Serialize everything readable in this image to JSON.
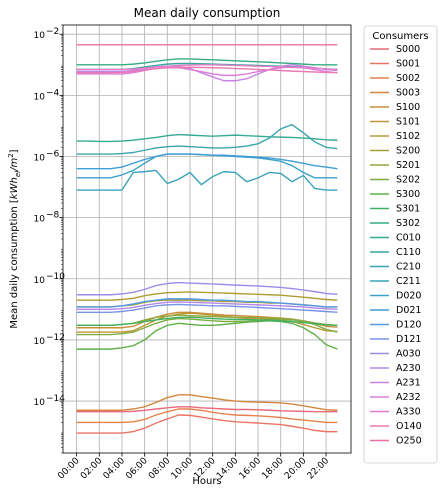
{
  "chart_data": {
    "type": "line",
    "title": "Mean daily consumption",
    "xlabel": "Hours",
    "ylabel": "Mean daily consumption [kWh_el/m^2]",
    "yscale": "log",
    "ylim": [
      2e-16,
      0.02
    ],
    "xlim": [
      -1.2,
      24.2
    ],
    "grid": true,
    "legend": {
      "title": "Consumers",
      "placement": "outside-right"
    },
    "x_ticks": [
      {
        "x": 0,
        "label": "00:00"
      },
      {
        "x": 2,
        "label": "02:00"
      },
      {
        "x": 4,
        "label": "04:00"
      },
      {
        "x": 6,
        "label": "06:00"
      },
      {
        "x": 8,
        "label": "08:00"
      },
      {
        "x": 10,
        "label": "10:00"
      },
      {
        "x": 12,
        "label": "12:00"
      },
      {
        "x": 14,
        "label": "14:00"
      },
      {
        "x": 16,
        "label": "16:00"
      },
      {
        "x": 18,
        "label": "18:00"
      },
      {
        "x": 20,
        "label": "20:00"
      },
      {
        "x": 22,
        "label": "22:00"
      }
    ],
    "y_ticks": [
      {
        "value": 1e-14,
        "base": "10",
        "exp": "−14"
      },
      {
        "value": 1e-12,
        "base": "10",
        "exp": "−12"
      },
      {
        "value": 1e-10,
        "base": "10",
        "exp": "−10"
      },
      {
        "value": 1e-08,
        "base": "10",
        "exp": "−8"
      },
      {
        "value": 1e-06,
        "base": "10",
        "exp": "−6"
      },
      {
        "value": 0.0001,
        "base": "10",
        "exp": "−4"
      },
      {
        "value": 0.01,
        "base": "10",
        "exp": "−2"
      }
    ],
    "x": [
      0,
      1,
      2,
      3,
      4,
      5,
      6,
      7,
      8,
      9,
      10,
      11,
      12,
      13,
      14,
      15,
      16,
      17,
      18,
      19,
      20,
      21,
      22,
      23
    ],
    "series": [
      {
        "name": "S000",
        "color": "#e8697a",
        "values": [
          4.5e-15,
          4.5e-15,
          4.5e-15,
          4.5e-15,
          4.5e-15,
          4.6e-15,
          5e-15,
          5.5e-15,
          6e-15,
          6.5e-15,
          6.5e-15,
          6e-15,
          5.8e-15,
          5.5e-15,
          5.3e-15,
          5.3e-15,
          5.2e-15,
          5e-15,
          4.8e-15,
          4.7e-15,
          4.6e-15,
          4.5e-15,
          4.5e-15,
          4.5e-15
        ]
      },
      {
        "name": "S001",
        "color": "#ea7565",
        "values": [
          9e-16,
          9e-16,
          9e-16,
          9e-16,
          9e-16,
          1e-15,
          1.3e-15,
          1.9e-15,
          2.6e-15,
          3.5e-15,
          3.4e-15,
          3e-15,
          2.6e-15,
          2.3e-15,
          2.1e-15,
          2e-15,
          1.9e-15,
          1.8e-15,
          1.7e-15,
          1.5e-15,
          1.3e-15,
          1.1e-15,
          1e-15,
          1e-15
        ]
      },
      {
        "name": "S002",
        "color": "#e6814e",
        "values": [
          2e-15,
          2e-15,
          2e-15,
          2e-15,
          2e-15,
          2.1e-15,
          2.5e-15,
          3.5e-15,
          4.5e-15,
          5.5e-15,
          5.5e-15,
          5e-15,
          4.3e-15,
          3.8e-15,
          3.5e-15,
          3.4e-15,
          3.3e-15,
          3.1e-15,
          2.9e-15,
          2.6e-15,
          2.4e-15,
          2.2e-15,
          2e-15,
          2e-15
        ]
      },
      {
        "name": "S003",
        "color": "#d4883f",
        "values": [
          5e-15,
          5e-15,
          5e-15,
          5e-15,
          5e-15,
          5.5e-15,
          6.5e-15,
          9e-15,
          1.3e-14,
          1.6e-14,
          1.6e-14,
          1.4e-14,
          1.25e-14,
          1.1e-14,
          1e-14,
          9.5e-15,
          9.2e-15,
          9e-15,
          8.7e-15,
          8e-15,
          7e-15,
          6e-15,
          5.2e-15,
          5e-15
        ]
      },
      {
        "name": "S100",
        "color": "#c88f3b",
        "values": [
          2.5e-12,
          2.5e-12,
          2.5e-12,
          2.5e-12,
          2.5e-12,
          2.8e-12,
          4e-12,
          5.5e-12,
          7e-12,
          8e-12,
          8e-12,
          7.5e-12,
          7e-12,
          6.5e-12,
          6.3e-12,
          6e-12,
          5.8e-12,
          5.5e-12,
          5.2e-12,
          4.8e-12,
          4.2e-12,
          3.5e-12,
          2.8e-12,
          2.6e-12
        ]
      },
      {
        "name": "S101",
        "color": "#bf9535",
        "values": [
          1.8e-12,
          1.8e-12,
          1.8e-12,
          1.8e-12,
          1.8e-12,
          2e-12,
          3e-12,
          4.5e-12,
          6e-12,
          7e-12,
          7.5e-12,
          7e-12,
          6.5e-12,
          6e-12,
          5.5e-12,
          5e-12,
          5e-12,
          4.8e-12,
          4.5e-12,
          4e-12,
          3.2e-12,
          2.5e-12,
          2e-12,
          1.9e-12
        ]
      },
      {
        "name": "S102",
        "color": "#b09d32",
        "values": [
          2e-11,
          2e-11,
          2e-11,
          2e-11,
          2.1e-11,
          2.3e-11,
          2.8e-11,
          3.2e-11,
          3.5e-11,
          3.6e-11,
          3.7e-11,
          3.6e-11,
          3.5e-11,
          3.4e-11,
          3.3e-11,
          3.2e-11,
          3.1e-11,
          3e-11,
          2.9e-11,
          2.7e-11,
          2.5e-11,
          2.3e-11,
          2.1e-11,
          2e-11
        ]
      },
      {
        "name": "S200",
        "color": "#a1a236",
        "values": [
          1.2e-11,
          1.2e-11,
          1.2e-11,
          1.2e-11,
          1.3e-11,
          1.4e-11,
          1.7e-11,
          1.9e-11,
          2e-11,
          2e-11,
          2e-11,
          1.9e-11,
          1.9e-11,
          1.8e-11,
          1.8e-11,
          1.7e-11,
          1.7e-11,
          1.6e-11,
          1.6e-11,
          1.5e-11,
          1.4e-11,
          1.3e-11,
          1.2e-11,
          1.2e-11
        ]
      },
      {
        "name": "S201",
        "color": "#92a83b",
        "values": [
          3e-12,
          3e-12,
          3e-12,
          3e-12,
          3.2e-12,
          3.5e-12,
          4.5e-12,
          5.5e-12,
          6e-12,
          6.5e-12,
          6.2e-12,
          6e-12,
          5.8e-12,
          5.6e-12,
          5.5e-12,
          5.4e-12,
          5.3e-12,
          5.2e-12,
          5e-12,
          4.6e-12,
          4.2e-12,
          3.6e-12,
          3.2e-12,
          3e-12
        ]
      },
      {
        "name": "S202",
        "color": "#7fad40",
        "values": [
          1.5e-12,
          1.5e-12,
          1.5e-12,
          1.5e-12,
          1.6e-12,
          1.8e-12,
          2.5e-12,
          3.5e-12,
          4.5e-12,
          5e-12,
          4.8e-12,
          4.5e-12,
          4.2e-12,
          4e-12,
          4e-12,
          4e-12,
          4.2e-12,
          4.5e-12,
          4.8e-12,
          4.6e-12,
          4e-12,
          3.2e-12,
          2.2e-12,
          1.8e-12
        ]
      },
      {
        "name": "S300",
        "color": "#5fb048",
        "values": [
          5e-13,
          5e-13,
          5e-13,
          5e-13,
          5.5e-13,
          6.5e-13,
          1e-12,
          2e-12,
          3e-12,
          3.5e-12,
          3.2e-12,
          3e-12,
          3e-12,
          3.2e-12,
          3.5e-12,
          3.8e-12,
          4e-12,
          4.2e-12,
          4e-12,
          3.5e-12,
          2.5e-12,
          1.5e-12,
          7e-13,
          5e-13
        ]
      },
      {
        "name": "S301",
        "color": "#3fb061",
        "values": [
          3e-12,
          3e-12,
          3e-12,
          3e-12,
          3.2e-12,
          3.5e-12,
          4e-12,
          4.5e-12,
          5e-12,
          5.5e-12,
          5.5e-12,
          5.3e-12,
          5e-12,
          4.8e-12,
          4.7e-12,
          4.6e-12,
          4.5e-12,
          4.4e-12,
          4.2e-12,
          4e-12,
          3.7e-12,
          3.4e-12,
          3.1e-12,
          3e-12
        ]
      },
      {
        "name": "S302",
        "color": "#35ad81",
        "values": [
          0.001,
          0.001,
          0.001,
          0.001,
          0.001,
          0.00105,
          0.00115,
          0.0013,
          0.00145,
          0.00155,
          0.00155,
          0.0015,
          0.00145,
          0.0014,
          0.00135,
          0.0013,
          0.00125,
          0.0012,
          0.00115,
          0.0011,
          0.00105,
          0.001,
          0.001,
          0.001
        ]
      },
      {
        "name": "C010",
        "color": "#36aa93",
        "values": [
          3.2e-06,
          3.2e-06,
          3.1e-06,
          3.1e-06,
          3.2e-06,
          3.4e-06,
          3.8e-06,
          4.2e-06,
          4.8e-06,
          5.2e-06,
          5e-06,
          4.8e-06,
          4.6e-06,
          4.8e-06,
          5e-06,
          4.8e-06,
          4.6e-06,
          4.4e-06,
          4.3e-06,
          4.2e-06,
          4e-06,
          3.8e-06,
          3.5e-06,
          3.4e-06
        ]
      },
      {
        "name": "C110",
        "color": "#38a7a2",
        "values": [
          0.0007,
          0.0007,
          0.0007,
          0.0007,
          0.0007,
          0.00075,
          0.00085,
          0.00095,
          0.00105,
          0.0011,
          0.0011,
          0.00108,
          0.00105,
          0.00102,
          0.001,
          0.00098,
          0.00095,
          0.00092,
          0.0009,
          0.00087,
          0.00083,
          0.00078,
          0.00073,
          0.0007
        ]
      },
      {
        "name": "C210",
        "color": "#39a5ae",
        "values": [
          1.2e-06,
          1.2e-06,
          1.2e-06,
          1.2e-06,
          1.25e-06,
          1.35e-06,
          1.6e-06,
          1.9e-06,
          2.1e-06,
          2.2e-06,
          2.1e-06,
          2e-06,
          1.9e-06,
          1.9e-06,
          2e-06,
          2.2e-06,
          2.6e-06,
          4e-06,
          8e-06,
          1.1e-05,
          6e-06,
          3e-06,
          2e-06,
          1.8e-06
        ]
      },
      {
        "name": "C211",
        "color": "#3aa3ba",
        "values": [
          8e-08,
          8e-08,
          8e-08,
          8e-08,
          8e-08,
          3e-07,
          3.2e-07,
          3.5e-07,
          1.3e-07,
          1.8e-07,
          3e-07,
          1.2e-07,
          2.2e-07,
          3.2e-07,
          3e-07,
          1.5e-07,
          2e-07,
          3e-07,
          2.8e-07,
          1.5e-07,
          2.4e-07,
          9e-08,
          8e-08,
          8e-08
        ]
      },
      {
        "name": "D020",
        "color": "#3ca1c6",
        "values": [
          2e-07,
          2e-07,
          2e-07,
          2e-07,
          2.5e-07,
          3.5e-07,
          6e-07,
          1e-06,
          1.2e-06,
          1.2e-06,
          1.2e-06,
          1.15e-06,
          1.1e-06,
          1.05e-06,
          1e-06,
          9.5e-07,
          9e-07,
          8e-07,
          7e-07,
          5e-07,
          3e-07,
          2e-07,
          2e-07,
          2e-07
        ]
      },
      {
        "name": "D021",
        "color": "#3f9ed6",
        "values": [
          4e-07,
          4e-07,
          4e-07,
          4e-07,
          4.5e-07,
          6e-07,
          8e-07,
          1e-06,
          1.2e-06,
          1.2e-06,
          1.2e-06,
          1.15e-06,
          1.1e-06,
          1.1e-06,
          1.05e-06,
          1e-06,
          9.5e-07,
          9e-07,
          8e-07,
          7e-07,
          6e-07,
          5e-07,
          4.5e-07,
          4e-07
        ]
      },
      {
        "name": "D120",
        "color": "#5599e6",
        "values": [
          1.2e-11,
          1.2e-11,
          1.2e-11,
          1.2e-11,
          1.3e-11,
          1.5e-11,
          1.8e-11,
          2e-11,
          2.2e-11,
          2.2e-11,
          2.2e-11,
          2.1e-11,
          2e-11,
          2e-11,
          1.9e-11,
          1.8e-11,
          1.8e-11,
          1.7e-11,
          1.6e-11,
          1.5e-11,
          1.4e-11,
          1.3e-11,
          1.2e-11,
          1.2e-11
        ]
      },
      {
        "name": "D121",
        "color": "#7a94ea",
        "values": [
          8e-12,
          8e-12,
          8e-12,
          8e-12,
          8.5e-12,
          9.5e-12,
          1.1e-11,
          1.3e-11,
          1.4e-11,
          1.45e-11,
          1.4e-11,
          1.35e-11,
          1.3e-11,
          1.3e-11,
          1.25e-11,
          1.2e-11,
          1.15e-11,
          1.1e-11,
          1.05e-11,
          1e-11,
          9.5e-12,
          9e-12,
          8.5e-12,
          8e-12
        ]
      },
      {
        "name": "A030",
        "color": "#9a8ee9",
        "values": [
          3e-11,
          3e-11,
          3e-11,
          3e-11,
          3.2e-11,
          3.6e-11,
          4.5e-11,
          6e-11,
          7e-11,
          7.5e-11,
          7.2e-11,
          7e-11,
          6.8e-11,
          6.5e-11,
          6.2e-11,
          6e-11,
          5.8e-11,
          5.5e-11,
          5.2e-11,
          4.8e-11,
          4.3e-11,
          3.8e-11,
          3.3e-11,
          3.1e-11
        ]
      },
      {
        "name": "A230",
        "color": "#b388e8",
        "values": [
          1e-11,
          1e-11,
          1e-11,
          1e-11,
          1.05e-11,
          1.15e-11,
          1.35e-11,
          1.55e-11,
          1.7e-11,
          1.75e-11,
          1.7e-11,
          1.65e-11,
          1.6e-11,
          1.55e-11,
          1.5e-11,
          1.45e-11,
          1.4e-11,
          1.35e-11,
          1.3e-11,
          1.25e-11,
          1.2e-11,
          1.1e-11,
          1.05e-11,
          1e-11
        ]
      },
      {
        "name": "A231",
        "color": "#c882e4",
        "values": [
          0.0006,
          0.0006,
          0.0006,
          0.0006,
          0.0006,
          0.00065,
          0.00075,
          0.00085,
          0.0009,
          0.0009,
          0.00075,
          0.00055,
          0.0004,
          0.0003,
          0.0003,
          0.00035,
          0.0005,
          0.0007,
          0.0009,
          0.001,
          0.0009,
          0.0008,
          0.0007,
          0.00065
        ]
      },
      {
        "name": "A232",
        "color": "#da7edc",
        "values": [
          0.0005,
          0.0005,
          0.0005,
          0.0005,
          0.0005,
          0.00055,
          0.00065,
          0.00075,
          0.0008,
          0.0008,
          0.0007,
          0.0006,
          0.0005,
          0.00045,
          0.00045,
          0.0005,
          0.0006,
          0.0007,
          0.0008,
          0.00085,
          0.0008,
          0.0007,
          0.0006,
          0.00055
        ]
      },
      {
        "name": "A330",
        "color": "#e57cc9",
        "values": [
          0.0007,
          0.0007,
          0.0007,
          0.0007,
          0.0007,
          0.00072,
          0.00078,
          0.00085,
          0.0009,
          0.00095,
          0.00098,
          0.001,
          0.001,
          0.00098,
          0.00095,
          0.00093,
          0.0009,
          0.00088,
          0.00085,
          0.00082,
          0.0008,
          0.00077,
          0.00073,
          0.0007
        ]
      },
      {
        "name": "O140",
        "color": "#eb78b2",
        "values": [
          0.00055,
          0.00055,
          0.00055,
          0.00055,
          0.00056,
          0.0006,
          0.00068,
          0.00075,
          0.0008,
          0.00082,
          0.00083,
          0.00082,
          0.0008,
          0.00078,
          0.00075,
          0.00073,
          0.0007,
          0.00068,
          0.00065,
          0.00062,
          0.0006,
          0.00058,
          0.00056,
          0.00055
        ]
      },
      {
        "name": "O250",
        "color": "#ee6fa3",
        "values": [
          0.0045,
          0.0045,
          0.0045,
          0.0045,
          0.0045,
          0.0045,
          0.0045,
          0.0045,
          0.0045,
          0.0045,
          0.0045,
          0.0045,
          0.0045,
          0.0045,
          0.0045,
          0.0045,
          0.0045,
          0.0045,
          0.0045,
          0.0045,
          0.0045,
          0.0045,
          0.0045,
          0.0045
        ]
      }
    ]
  }
}
